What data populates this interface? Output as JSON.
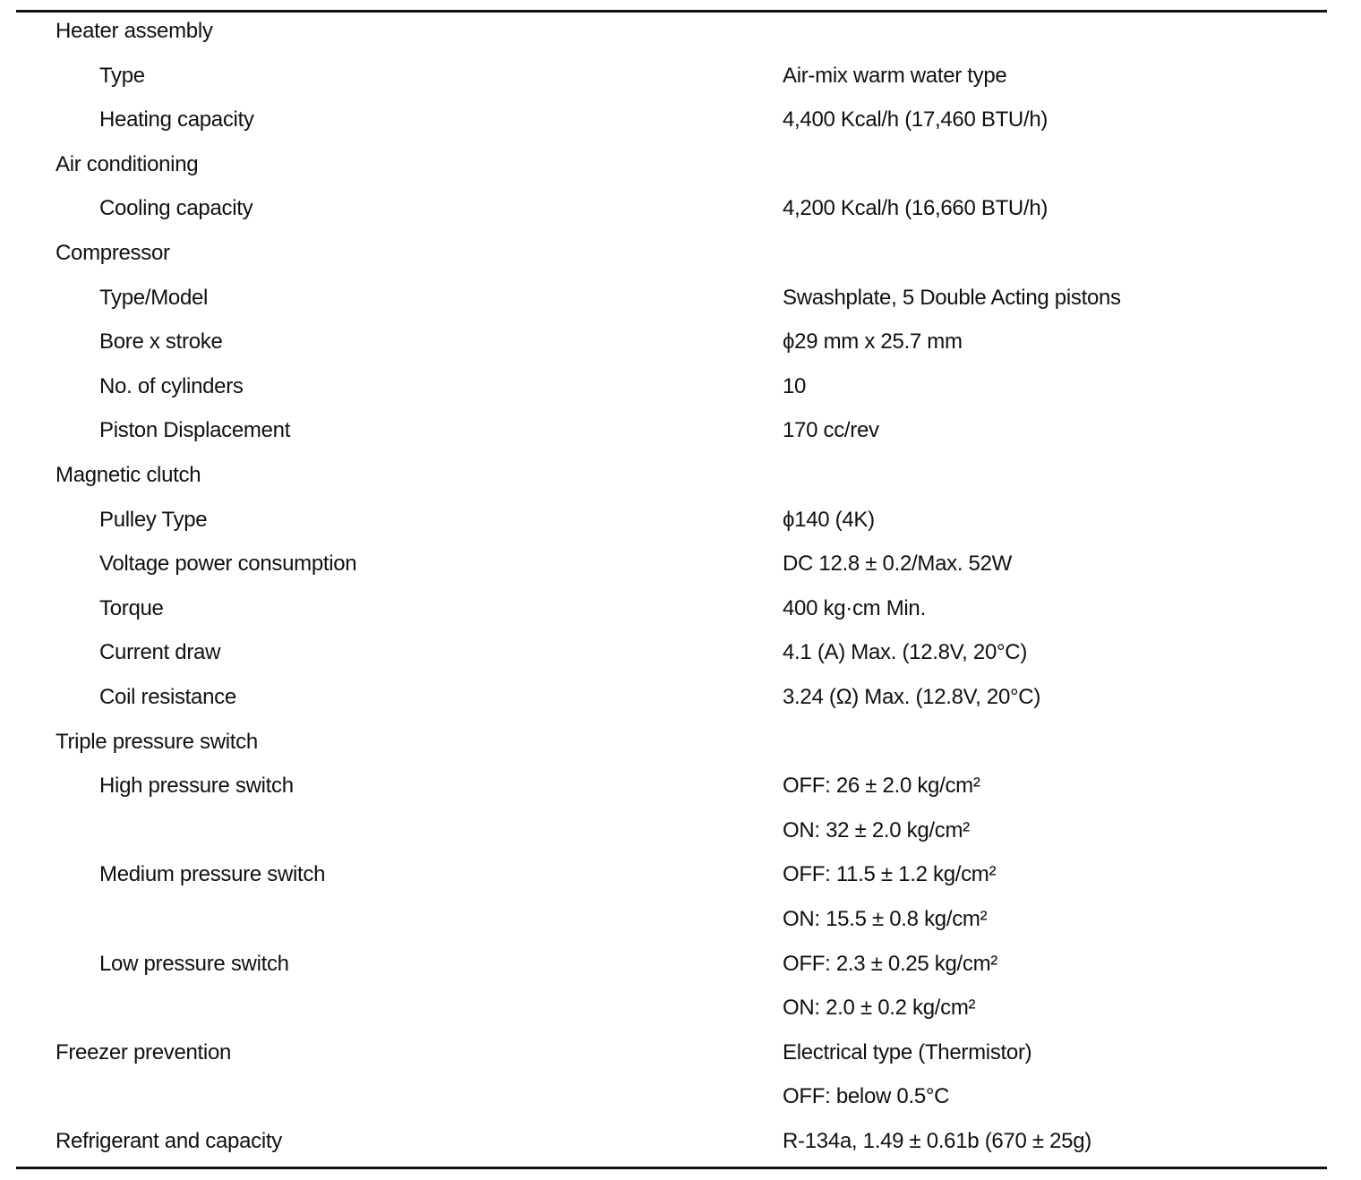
{
  "rows": [
    {
      "label": "Heater assembly",
      "level": 0,
      "value": ""
    },
    {
      "label": "Type",
      "level": 1,
      "value": "Air-mix warm water type"
    },
    {
      "label": "Heating capacity",
      "level": 1,
      "value": "4,400 Kcal/h (17,460 BTU/h)"
    },
    {
      "label": "Air conditioning",
      "level": 0,
      "value": ""
    },
    {
      "label": "Cooling capacity",
      "level": 1,
      "value": "4,200 Kcal/h (16,660 BTU/h)"
    },
    {
      "label": "Compressor",
      "level": 0,
      "value": ""
    },
    {
      "label": "Type/Model",
      "level": 1,
      "value": "Swashplate, 5 Double Acting pistons"
    },
    {
      "label": "Bore x stroke",
      "level": 1,
      "value": "ϕ29 mm x 25.7 mm"
    },
    {
      "label": "No. of cylinders",
      "level": 1,
      "value": "10"
    },
    {
      "label": "Piston Displacement",
      "level": 1,
      "value": "170 cc/rev"
    },
    {
      "label": "Magnetic clutch",
      "level": 0,
      "value": ""
    },
    {
      "label": "Pulley Type",
      "level": 1,
      "value": "ϕ140 (4K)"
    },
    {
      "label": "Voltage power consumption",
      "level": 1,
      "value": "DC 12.8 ± 0.2/Max. 52W"
    },
    {
      "label": "Torque",
      "level": 1,
      "value": "400 kg·cm Min."
    },
    {
      "label": "Current draw",
      "level": 1,
      "value": "4.1 (A) Max. (12.8V, 20°C)"
    },
    {
      "label": "Coil resistance",
      "level": 1,
      "value": "3.24 (Ω) Max. (12.8V, 20°C)"
    },
    {
      "label": "Triple pressure switch",
      "level": 0,
      "value": ""
    },
    {
      "label": "High pressure switch",
      "level": 1,
      "value": "OFF: 26 ± 2.0 kg/cm²"
    },
    {
      "label": "",
      "level": 1,
      "value": "ON: 32 ± 2.0 kg/cm²"
    },
    {
      "label": "Medium pressure switch",
      "level": 1,
      "value": "OFF: 11.5 ± 1.2 kg/cm²"
    },
    {
      "label": "",
      "level": 1,
      "value": "ON: 15.5 ± 0.8 kg/cm²"
    },
    {
      "label": "Low pressure switch",
      "level": 1,
      "value": "OFF: 2.3 ± 0.25 kg/cm²"
    },
    {
      "label": "",
      "level": 1,
      "value": "ON: 2.0 ± 0.2 kg/cm²"
    },
    {
      "label": "Freezer prevention",
      "level": 0,
      "value": "Electrical type (Thermistor)"
    },
    {
      "label": "",
      "level": 0,
      "value": "OFF: below 0.5°C"
    },
    {
      "label": "Refrigerant and capacity",
      "level": 0,
      "value": "R-134a, 1.49 ± 0.61b (670 ± 25g)"
    }
  ]
}
